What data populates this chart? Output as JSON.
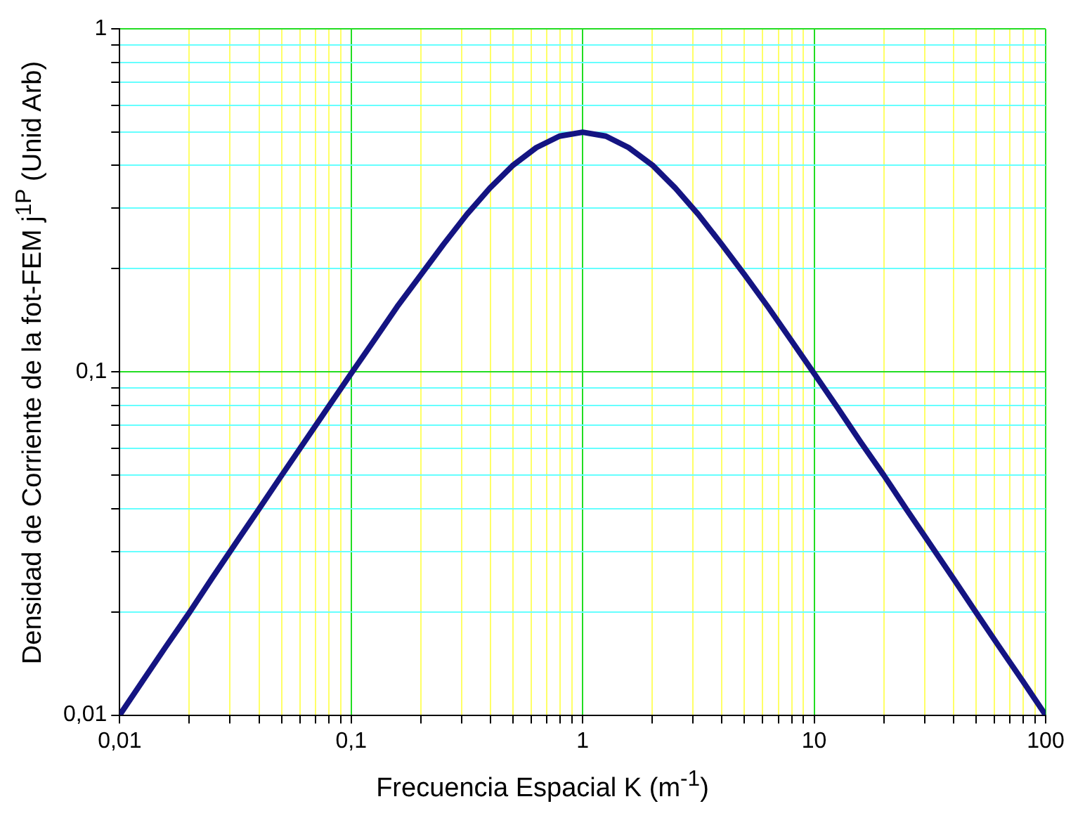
{
  "chart_data": {
    "type": "line",
    "xlabel": "Frecuencia Espacial K (m$^{-1}$)",
    "ylabel": "Densidad de Corriente de la fot-FEM j$^{1P}$ (Unid Arb)",
    "x": [
      0.01,
      0.0126,
      0.0158,
      0.02,
      0.0251,
      0.0316,
      0.0398,
      0.0501,
      0.0631,
      0.0794,
      0.1,
      0.126,
      0.158,
      0.2,
      0.251,
      0.316,
      0.398,
      0.501,
      0.631,
      0.794,
      1,
      1.26,
      1.58,
      2,
      2.51,
      3.16,
      3.98,
      5.01,
      6.31,
      7.94,
      10,
      12.6,
      15.8,
      20,
      25.1,
      31.6,
      39.8,
      50.1,
      63.1,
      79.4,
      100
    ],
    "series": [
      {
        "color": "#141482",
        "values": [
          0.01,
          0.0126,
          0.0158,
          0.0199,
          0.0251,
          0.0316,
          0.0397,
          0.05,
          0.0628,
          0.0789,
          0.099,
          0.124,
          0.155,
          0.192,
          0.236,
          0.288,
          0.344,
          0.401,
          0.451,
          0.487,
          0.5,
          0.487,
          0.451,
          0.401,
          0.344,
          0.288,
          0.236,
          0.192,
          0.155,
          0.124,
          0.099,
          0.0789,
          0.0628,
          0.05,
          0.0397,
          0.0316,
          0.0251,
          0.0199,
          0.0158,
          0.0126,
          0.01
        ]
      }
    ],
    "log": "xy",
    "xlim": [
      0.01,
      100
    ],
    "ylim": [
      0.01,
      1
    ],
    "xticks": [
      {
        "value": 0.01,
        "label": "0,01"
      },
      {
        "value": 0.02,
        "label": null
      },
      {
        "value": 0.03,
        "label": null
      },
      {
        "value": 0.04,
        "label": null
      },
      {
        "value": 0.05,
        "label": null
      },
      {
        "value": 0.06,
        "label": null
      },
      {
        "value": 0.07,
        "label": null
      },
      {
        "value": 0.08,
        "label": null
      },
      {
        "value": 0.09,
        "label": null
      },
      {
        "value": 0.1,
        "label": "0,1"
      },
      {
        "value": 0.2,
        "label": null
      },
      {
        "value": 0.3,
        "label": null
      },
      {
        "value": 0.4,
        "label": null
      },
      {
        "value": 0.5,
        "label": null
      },
      {
        "value": 0.6,
        "label": null
      },
      {
        "value": 0.7,
        "label": null
      },
      {
        "value": 0.8,
        "label": null
      },
      {
        "value": 0.9,
        "label": null
      },
      1,
      {
        "value": 2,
        "label": null
      },
      {
        "value": 3,
        "label": null
      },
      {
        "value": 4,
        "label": null
      },
      {
        "value": 5,
        "label": null
      },
      {
        "value": 6,
        "label": null
      },
      {
        "value": 7,
        "label": null
      },
      {
        "value": 8,
        "label": null
      },
      {
        "value": 9,
        "label": null
      },
      10,
      {
        "value": 20,
        "label": null
      },
      {
        "value": 30,
        "label": null
      },
      {
        "value": 40,
        "label": null
      },
      {
        "value": 50,
        "label": null
      },
      {
        "value": 60,
        "label": null
      },
      {
        "value": 70,
        "label": null
      },
      {
        "value": 80,
        "label": null
      },
      {
        "value": 90,
        "label": null
      },
      100
    ],
    "yticks": [
      {
        "value": 0.01,
        "label": "0,01"
      },
      {
        "value": 0.02,
        "label": null
      },
      {
        "value": 0.03,
        "label": null
      },
      {
        "value": 0.04,
        "label": null
      },
      {
        "value": 0.05,
        "label": null
      },
      {
        "value": 0.06,
        "label": null
      },
      {
        "value": 0.07,
        "label": null
      },
      {
        "value": 0.08,
        "label": null
      },
      {
        "value": 0.09,
        "label": null
      },
      {
        "value": 0.1,
        "label": "0,1"
      },
      {
        "value": 0.2,
        "label": null
      },
      {
        "value": 0.3,
        "label": null
      },
      {
        "value": 0.4,
        "label": null
      },
      {
        "value": 0.5,
        "label": null
      },
      {
        "value": 0.6,
        "label": null
      },
      {
        "value": 0.7,
        "label": null
      },
      {
        "value": 0.8,
        "label": null
      },
      {
        "value": 0.9,
        "label": null
      },
      1
    ],
    "grid": true,
    "legend": false,
    "marker": "none",
    "line_style": "solid"
  }
}
